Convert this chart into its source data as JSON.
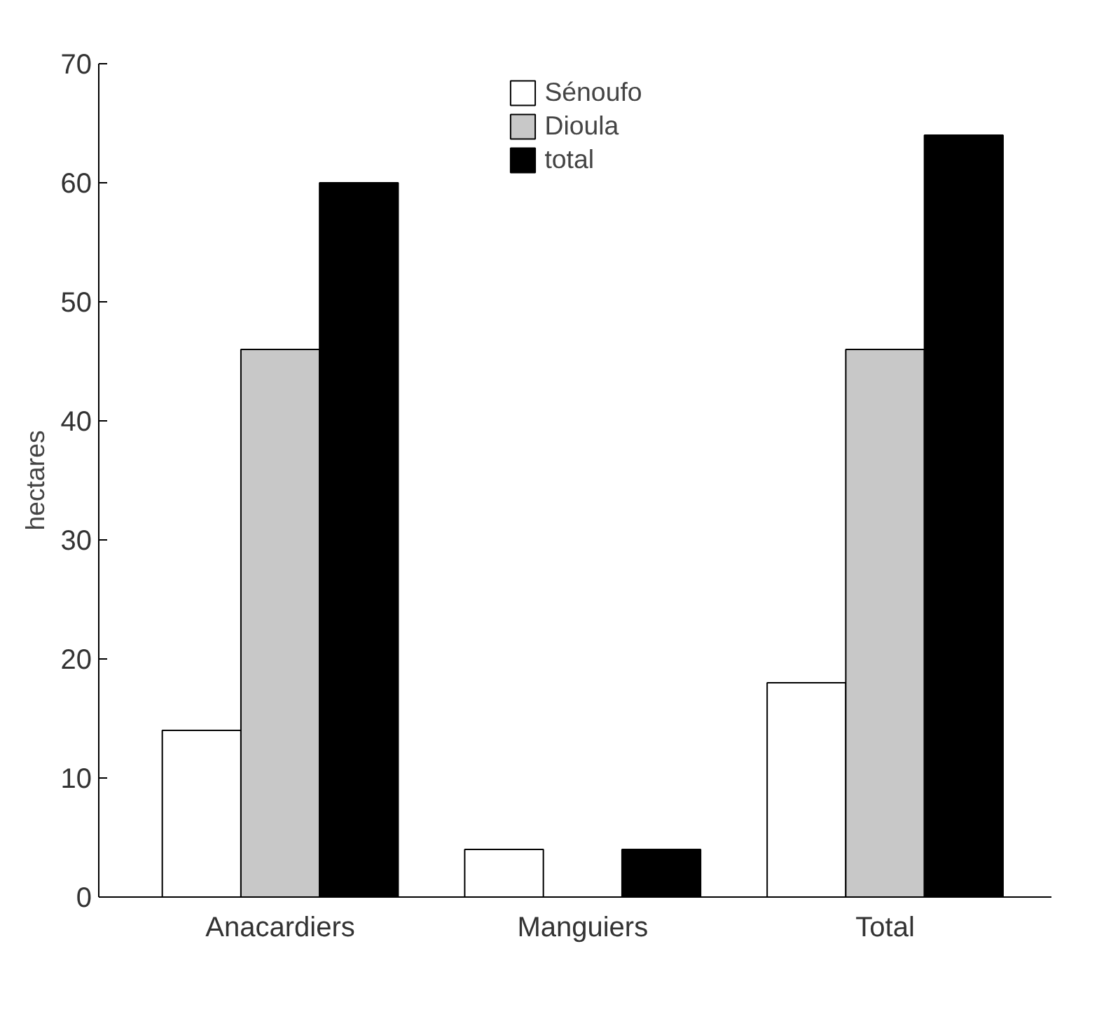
{
  "chart_data": {
    "type": "bar",
    "ylabel": "hectares",
    "categories": [
      "Anacardiers",
      "Manguiers",
      "Total"
    ],
    "series": [
      {
        "name": "Sénoufo",
        "color": "#ffffff",
        "values": [
          14,
          4,
          18
        ]
      },
      {
        "name": "Dioula",
        "color": "#c8c8c8",
        "values": [
          46,
          null,
          46
        ]
      },
      {
        "name": "total",
        "color": "#000000",
        "values": [
          60,
          4,
          64
        ]
      }
    ],
    "ylim": [
      0,
      70
    ],
    "yticks": [
      0,
      10,
      20,
      30,
      40,
      50,
      60,
      70
    ],
    "grid": false,
    "legend": "top"
  }
}
